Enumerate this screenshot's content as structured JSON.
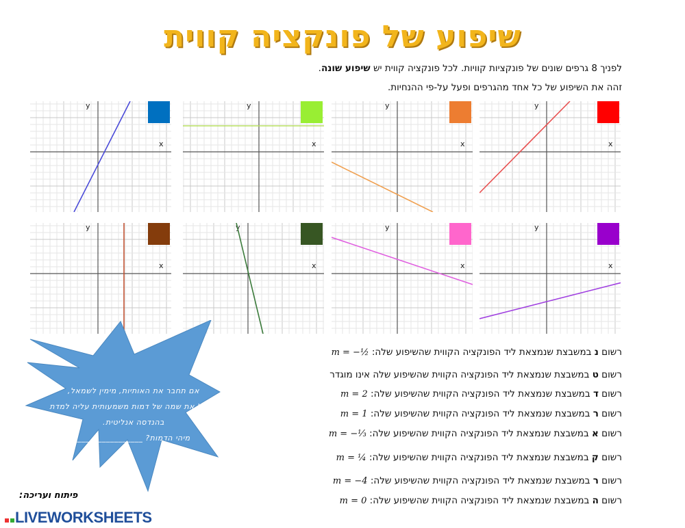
{
  "title": "שיפוע של פונקציה קווית",
  "intro": {
    "line1_prefix": "לפניך 8 גרפים שונים של פונקציות קוויות. לכל פונקציה קווית יש ",
    "line1_bold": "שיפוע שונה",
    "line1_suffix": ".",
    "line2": "זהה את השיפוע של כל אחד מהגרפים ופעל על-פי ההנחיות."
  },
  "axis_labels": {
    "x": "x",
    "y": "y"
  },
  "graphs": [
    {
      "color": "#0070c0",
      "line_color": "#4a4ad8"
    },
    {
      "color": "#99ee33",
      "line_color": "#b8e060"
    },
    {
      "color": "#ed7d31",
      "line_color": "#f0a050"
    },
    {
      "color": "#ff0000",
      "line_color": "#e85050"
    },
    {
      "color": "#843c0c",
      "line_color": "#c05030"
    },
    {
      "color": "#375623",
      "line_color": "#3a7a3a"
    },
    {
      "color": "#ff66cc",
      "line_color": "#e060e0"
    },
    {
      "color": "#9900cc",
      "line_color": "#a040e0"
    }
  ],
  "questions": [
    {
      "pre": "רשום ",
      "letter": "נ",
      "text": " במשבצת שנמצאת ליד הפונקציה הקווית שהשיפוע שלה: ",
      "math": "m = −½"
    },
    {
      "pre": "רשום ",
      "letter": "ט",
      "text": " במשבצת שנמצאת ליד הפונקציה הקווית שהשיפוע שלה אינו מוגדר",
      "math": ""
    },
    {
      "pre": "רשום ",
      "letter": "ד",
      "text": " במשבצת שנמצאת ליד הפונקציה הקווית שהשיפוע שלה: ",
      "math": "m = 2"
    },
    {
      "pre": "רשום ",
      "letter": "ר",
      "text": " במשבצת שנמצאת ליד הפונקציה הקווית שהשיפוע שלה: ",
      "math": "m = 1"
    },
    {
      "pre": "רשום ",
      "letter": "א",
      "text": " במשבצת שנמצאת ליד הפונקציה הקווית שהשיפוע שלה: ",
      "math": "m = −⅓"
    },
    {
      "pre": "רשום ",
      "letter": "ק",
      "text": " במשבצת שנמצאת ליד הפונקציה הקווית שהשיפוע שלה: ",
      "math": "m = ¼"
    },
    {
      "pre": "רשום ",
      "letter": "ר",
      "text": " במשבצת שנמצאת ליד הפונקציה הקווית שהשיפוע שלה: ",
      "math": "m = −4"
    },
    {
      "pre": "רשום ",
      "letter": "ה",
      "text": " במשבצת שנמצאת ליד הפונקציה הקווית שהשיפוע שלה: ",
      "math": "m = 0"
    }
  ],
  "starburst": {
    "lines": [
      "אם תחבר את האותיות, מימין לשמאל,",
      "תקבל את שמה של דמות משמעותית עליה למדת",
      "בהנדסה אנליטית.",
      "מיהי הדמות? ________________"
    ],
    "color": "#5b9bd5"
  },
  "credit": "פיתוח ועריכה:",
  "logo": "LIVEWORKSHEETS"
}
